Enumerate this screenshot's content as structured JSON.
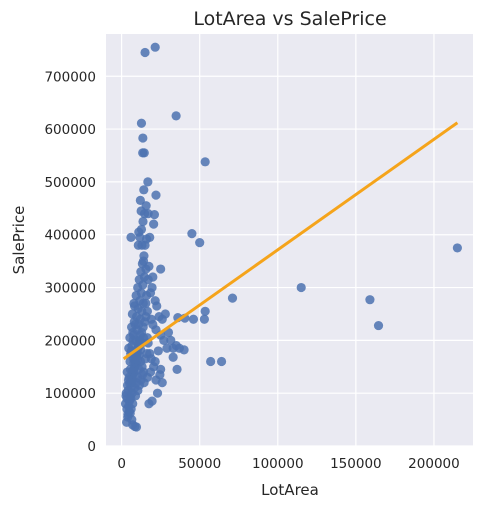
{
  "chart_data": {
    "type": "scatter",
    "title": "LotArea vs SalePrice",
    "xlabel": "LotArea",
    "ylabel": "SalePrice",
    "xlim": [
      -10000,
      225000
    ],
    "ylim": [
      0,
      780000
    ],
    "xticks": [
      0,
      50000,
      100000,
      150000,
      200000
    ],
    "xtick_labels": [
      "0",
      "50000",
      "100000",
      "150000",
      "200000"
    ],
    "yticks": [
      0,
      100000,
      200000,
      300000,
      400000,
      500000,
      600000,
      700000
    ],
    "ytick_labels": [
      "0",
      "100000",
      "200000",
      "300000",
      "400000",
      "500000",
      "600000",
      "700000"
    ],
    "grid": true,
    "colors": {
      "points": "#4c72b0",
      "regression": "#f5a41b",
      "background": "#eaeaf2",
      "grid": "#ffffff"
    },
    "series": [
      {
        "points": [
          [
            3200,
            45000
          ],
          [
            4000,
            60000
          ],
          [
            4500,
            75000
          ],
          [
            5000,
            85000
          ],
          [
            5500,
            95000
          ],
          [
            6000,
            110000
          ],
          [
            6500,
            120000
          ],
          [
            7000,
            125000
          ],
          [
            7500,
            135000
          ],
          [
            8000,
            140000
          ],
          [
            8500,
            150000
          ],
          [
            9000,
            160000
          ],
          [
            9500,
            170000
          ],
          [
            10000,
            175000
          ],
          [
            10500,
            185000
          ],
          [
            11000,
            190000
          ],
          [
            11500,
            200000
          ],
          [
            12000,
            210000
          ],
          [
            3500,
            90000
          ],
          [
            4200,
            105000
          ],
          [
            5200,
            118000
          ],
          [
            6300,
            128000
          ],
          [
            7300,
            138000
          ],
          [
            8200,
            148000
          ],
          [
            9100,
            155000
          ],
          [
            10200,
            162000
          ],
          [
            11200,
            172000
          ],
          [
            12200,
            182000
          ],
          [
            13000,
            195000
          ],
          [
            14000,
            205000
          ],
          [
            2500,
            80000
          ],
          [
            3000,
            100000
          ],
          [
            6800,
            142000
          ],
          [
            7800,
            158000
          ],
          [
            8800,
            168000
          ],
          [
            9800,
            178000
          ],
          [
            10800,
            188000
          ],
          [
            11800,
            198000
          ],
          [
            12800,
            215000
          ],
          [
            13800,
            225000
          ],
          [
            14800,
            235000
          ],
          [
            15500,
            245000
          ],
          [
            16500,
            255000
          ],
          [
            7600,
            210000
          ],
          [
            8700,
            230000
          ],
          [
            9600,
            245000
          ],
          [
            10600,
            260000
          ],
          [
            11600,
            275000
          ],
          [
            12600,
            290000
          ],
          [
            13600,
            305000
          ],
          [
            14600,
            320000
          ],
          [
            15600,
            335000
          ],
          [
            8300,
            265000
          ],
          [
            9300,
            285000
          ],
          [
            10300,
            300000
          ],
          [
            11300,
            315000
          ],
          [
            12300,
            330000
          ],
          [
            13300,
            345000
          ],
          [
            14300,
            360000
          ],
          [
            5800,
            175000
          ],
          [
            6600,
            190000
          ],
          [
            7400,
            200000
          ],
          [
            4800,
            130000
          ],
          [
            5600,
            145000
          ],
          [
            3800,
            115000
          ],
          [
            4400,
            125000
          ],
          [
            2800,
            95000
          ],
          [
            3400,
            70000
          ],
          [
            5400,
            160000
          ],
          [
            6200,
            180000
          ],
          [
            7200,
            215000
          ],
          [
            8100,
            235000
          ],
          [
            6900,
            250000
          ],
          [
            7900,
            270000
          ],
          [
            6400,
            225000
          ],
          [
            5300,
            205000
          ],
          [
            4600,
            185000
          ],
          [
            3600,
            140000
          ],
          [
            9900,
            220000
          ],
          [
            11900,
            240000
          ],
          [
            12900,
            255000
          ],
          [
            13900,
            270000
          ],
          [
            10900,
            230000
          ],
          [
            9200,
            200000
          ],
          [
            8600,
            180000
          ],
          [
            7700,
            165000
          ],
          [
            12100,
            160000
          ],
          [
            13100,
            150000
          ],
          [
            14100,
            140000
          ],
          [
            11100,
            145000
          ],
          [
            15200,
            165000
          ],
          [
            16200,
            175000
          ],
          [
            10100,
            130000
          ],
          [
            9400,
            120000
          ],
          [
            8400,
            110000
          ],
          [
            6700,
            100000
          ],
          [
            5900,
            90000
          ],
          [
            7100,
            80000
          ],
          [
            8900,
            95000
          ],
          [
            10400,
            105000
          ],
          [
            11400,
            115000
          ],
          [
            12400,
            125000
          ],
          [
            13400,
            135000
          ],
          [
            14400,
            120000
          ],
          [
            6100,
            70000
          ],
          [
            4900,
            65000
          ],
          [
            3900,
            55000
          ],
          [
            7100,
            40000
          ],
          [
            8500,
            37000
          ],
          [
            9500,
            36000
          ],
          [
            6500,
            50000
          ],
          [
            5500,
            62000
          ],
          [
            10700,
            380000
          ],
          [
            11700,
            395000
          ],
          [
            12700,
            410000
          ],
          [
            13700,
            425000
          ],
          [
            14700,
            440000
          ],
          [
            15700,
            455000
          ],
          [
            12000,
            465000
          ],
          [
            14200,
            485000
          ],
          [
            16800,
            500000
          ],
          [
            13500,
            555000
          ],
          [
            14500,
            555000
          ],
          [
            13600,
            583000
          ],
          [
            12700,
            611000
          ],
          [
            15000,
            745000
          ],
          [
            21500,
            755000
          ],
          [
            34900,
            625000
          ],
          [
            53500,
            538000
          ],
          [
            22000,
            475000
          ],
          [
            21000,
            438000
          ],
          [
            20500,
            420000
          ],
          [
            17000,
            440000
          ],
          [
            18000,
            395000
          ],
          [
            16000,
            392000
          ],
          [
            15000,
            380000
          ],
          [
            6000,
            395000
          ],
          [
            17500,
            340000
          ],
          [
            20000,
            320000
          ],
          [
            25000,
            335000
          ],
          [
            45000,
            402000
          ],
          [
            50000,
            385000
          ],
          [
            17000,
            315000
          ],
          [
            19500,
            300000
          ],
          [
            18500,
            290000
          ],
          [
            21500,
            275000
          ],
          [
            22500,
            265000
          ],
          [
            24000,
            245000
          ],
          [
            26000,
            240000
          ],
          [
            28000,
            250000
          ],
          [
            20000,
            230000
          ],
          [
            22000,
            220000
          ],
          [
            25000,
            210000
          ],
          [
            27000,
            200000
          ],
          [
            30000,
            215000
          ],
          [
            31500,
            200000
          ],
          [
            33000,
            185000
          ],
          [
            35000,
            190000
          ],
          [
            37000,
            185000
          ],
          [
            40000,
            182000
          ],
          [
            36000,
            243000
          ],
          [
            40500,
            242000
          ],
          [
            46000,
            240000
          ],
          [
            53000,
            240000
          ],
          [
            53500,
            255000
          ],
          [
            71000,
            280000
          ],
          [
            115000,
            300000
          ],
          [
            159000,
            277000
          ],
          [
            164500,
            228000
          ],
          [
            215000,
            375000
          ],
          [
            57000,
            160000
          ],
          [
            64000,
            160000
          ],
          [
            33000,
            168000
          ],
          [
            35500,
            145000
          ],
          [
            25000,
            145000
          ],
          [
            24500,
            135000
          ],
          [
            26000,
            120000
          ],
          [
            23000,
            100000
          ],
          [
            22000,
            125000
          ],
          [
            20500,
            150000
          ],
          [
            19000,
            165000
          ],
          [
            18000,
            175000
          ],
          [
            17000,
            195000
          ],
          [
            16500,
            205000
          ],
          [
            19500,
            85000
          ],
          [
            17500,
            80000
          ],
          [
            16500,
            130000
          ],
          [
            18500,
            140000
          ],
          [
            21500,
            160000
          ],
          [
            23500,
            180000
          ],
          [
            29000,
            185000
          ],
          [
            19000,
            240000
          ],
          [
            15500,
            270000
          ],
          [
            16000,
            285000
          ],
          [
            13000,
            380000
          ],
          [
            11000,
            405000
          ],
          [
            12500,
            445000
          ],
          [
            14000,
            350000
          ]
        ]
      }
    ],
    "regression": {
      "x": [
        1300,
        215000
      ],
      "y": [
        165000,
        612000
      ]
    }
  }
}
